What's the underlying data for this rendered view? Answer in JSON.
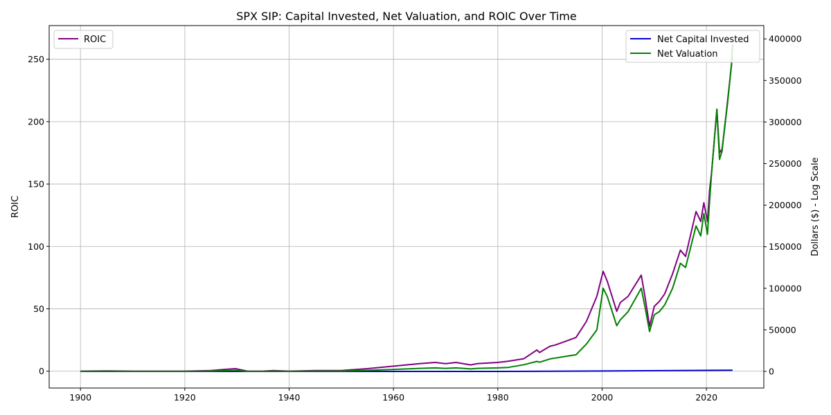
{
  "chart_data": {
    "type": "line",
    "title": "SPX SIP: Capital Invested, Net Valuation, and ROIC Over Time",
    "xlabel": "",
    "ylabel_left": "ROIC",
    "ylabel_right": "Dollars ($) - Log Scale",
    "xlim": [
      1894,
      2031
    ],
    "ylim_left": [
      -13.5,
      277
    ],
    "ylim_right": [
      -20000,
      416000
    ],
    "x_ticks": [
      1900,
      1920,
      1940,
      1960,
      1980,
      2000,
      2020
    ],
    "y_left_ticks": [
      0,
      50,
      100,
      150,
      200,
      250
    ],
    "y_right_ticks": [
      0,
      50000,
      100000,
      150000,
      200000,
      250000,
      300000,
      350000,
      400000
    ],
    "grid": true,
    "legend_left": {
      "placement": "upper-left",
      "entries": [
        "ROIC"
      ]
    },
    "legend_right": {
      "placement": "upper-right",
      "entries": [
        "Net Capital Invested",
        "Net Valuation"
      ]
    },
    "colors": {
      "ROIC": "#800080",
      "Net Capital Invested": "#0000cc",
      "Net Valuation": "#008000"
    },
    "series": [
      {
        "name": "ROIC",
        "axis": "left",
        "x": [
          1900,
          1905,
          1910,
          1915,
          1920,
          1925,
          1928,
          1929.7,
          1932,
          1935,
          1937,
          1940,
          1945,
          1950,
          1955,
          1960,
          1965,
          1968,
          1970,
          1972,
          1974.8,
          1976,
          1980,
          1982,
          1985,
          1987.5,
          1988,
          1990,
          1991,
          1993,
          1995,
          1997,
          1999,
          2000.2,
          2001,
          2002.8,
          2003.5,
          2005,
          2007.5,
          2008.2,
          2009.1,
          2010,
          2011,
          2012,
          2013.5,
          2015,
          2016,
          2018,
          2018.9,
          2019.5,
          2020.2,
          2020.6,
          2021,
          2022,
          2022.5,
          2023,
          2023.5,
          2024,
          2024.8,
          2025
        ],
        "y": [
          0,
          0.2,
          0,
          0,
          0,
          0.5,
          1.5,
          2,
          0,
          0,
          0.5,
          0,
          0.5,
          0.5,
          2,
          4,
          6,
          7,
          6,
          7,
          5,
          6,
          7,
          8,
          10,
          17,
          15,
          20,
          21,
          24,
          27,
          40,
          60,
          80,
          72,
          48,
          55,
          60,
          77,
          60,
          36,
          52,
          56,
          62,
          78,
          97,
          92,
          128,
          120,
          135,
          120,
          145,
          160,
          210,
          175,
          178,
          195,
          215,
          245,
          262
        ]
      },
      {
        "name": "Net Capital Invested",
        "axis": "right",
        "x": [
          1900,
          1925,
          1950,
          1980,
          2000,
          2025
        ],
        "y": [
          0,
          0,
          0,
          0,
          500,
          1500
        ]
      },
      {
        "name": "Net Valuation",
        "axis": "right",
        "x": [
          1900,
          1905,
          1910,
          1915,
          1920,
          1925,
          1928,
          1929.7,
          1932,
          1935,
          1937,
          1940,
          1945,
          1950,
          1955,
          1960,
          1965,
          1968,
          1970,
          1972,
          1974.8,
          1976,
          1980,
          1982,
          1985,
          1987.5,
          1988,
          1990,
          1991,
          1993,
          1995,
          1997,
          1999,
          2000.2,
          2001,
          2002.8,
          2003.5,
          2005,
          2007.5,
          2008.2,
          2009.1,
          2010,
          2011,
          2012,
          2013.5,
          2015,
          2016,
          2018,
          2018.9,
          2019.5,
          2020.2,
          2020.6,
          2021,
          2022,
          2022.5,
          2023,
          2023.5,
          2024,
          2024.8,
          2025
        ],
        "y": [
          0,
          200,
          0,
          0,
          0,
          300,
          900,
          1200,
          0,
          0,
          300,
          0,
          300,
          300,
          1200,
          2400,
          3600,
          4200,
          3600,
          4200,
          3000,
          3600,
          4200,
          4800,
          8000,
          12000,
          11000,
          15000,
          16000,
          18000,
          20000,
          33000,
          50000,
          100000,
          90000,
          55000,
          62000,
          72000,
          100000,
          78000,
          48000,
          68000,
          72000,
          80000,
          100000,
          130000,
          125000,
          175000,
          163000,
          190000,
          165000,
          205000,
          240000,
          315000,
          255000,
          265000,
          295000,
          320000,
          370000,
          392000
        ]
      }
    ]
  }
}
